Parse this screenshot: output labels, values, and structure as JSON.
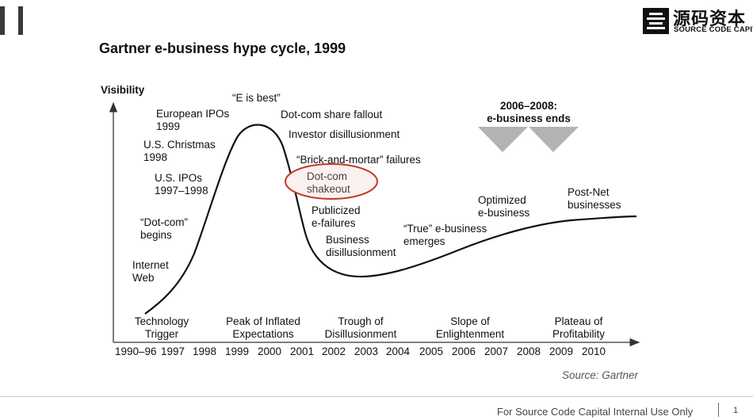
{
  "title": "Gartner e-business hype cycle, 1999",
  "logo": {
    "chinese": "源码资本",
    "english": "SOURCE CODE CAPITAL"
  },
  "y_axis_label": "Visibility",
  "annotations": {
    "internet_web": "Internet\nWeb",
    "dotcom_begins": "“Dot-com”\nbegins",
    "us_ipos": "U.S. IPOs\n1997–1998",
    "us_christmas": "U.S. Christmas\n1998",
    "european_ipos": "European IPOs\n1999",
    "e_is_best": "“E is best”",
    "share_fallout": "Dot-com share fallout",
    "investor_disillusionment": "Investor disillusionment",
    "brick_mortar": "“Brick-and-mortar” failures",
    "shakeout": "Dot-com\nshakeout",
    "publicized_failures": "Publicized\ne-failures",
    "business_disillusionment": "Business\ndisillusionment",
    "true_ebusiness": "“True” e-business\nemerges",
    "optimized": "Optimized\ne-business",
    "post_net": "Post-Net\nbusinesses",
    "ends": "2006–2008:\ne-business ends"
  },
  "phases": [
    "Technology\nTrigger",
    "Peak of Inflated\nExpectations",
    "Trough of\nDisillusionment",
    "Slope of\nEnlightenment",
    "Plateau of\nProfitability"
  ],
  "years": [
    "1990–96",
    "1997",
    "1998",
    "1999",
    "2000",
    "2001",
    "2002",
    "2003",
    "2004",
    "2005",
    "2006",
    "2007",
    "2008",
    "2009",
    "2010"
  ],
  "source": "Source: Gartner",
  "footer": {
    "text": "For Source Code Capital Internal Use Only",
    "page": "1"
  },
  "colors": {
    "highlight_circle": "#c0392b",
    "arrow_gray": "#b3b3b3",
    "curve": "#111111"
  }
}
